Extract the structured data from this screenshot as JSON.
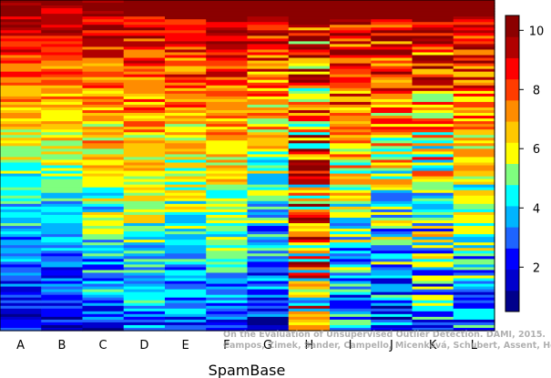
{
  "chart_data": {
    "type": "heatmap",
    "title": "",
    "xlabel": "SpamBase",
    "ylabel": "",
    "columns": [
      "A",
      "B",
      "C",
      "D",
      "E",
      "F",
      "G",
      "H",
      "I",
      "J",
      "K",
      "L"
    ],
    "color_scale": {
      "min": 0.5,
      "max": 10.5,
      "ticks": [
        2,
        4,
        6,
        8,
        10
      ],
      "colors": [
        "#00008B",
        "#0000CD",
        "#0000FF",
        "#1E64FF",
        "#00B4FF",
        "#00FFFF",
        "#7FFF7F",
        "#FFFF00",
        "#FFC800",
        "#FF8C00",
        "#FF3C00",
        "#FF0000",
        "#B00000",
        "#8B0000"
      ]
    },
    "column_profiles": [
      {
        "column": "A",
        "top": 10,
        "bottom": 1.5,
        "noise": 1.2
      },
      {
        "column": "B",
        "top": 10,
        "bottom": 1.5,
        "noise": 1.2
      },
      {
        "column": "C",
        "top": 10,
        "bottom": 2.5,
        "noise": 1.6
      },
      {
        "column": "D",
        "top": 10,
        "bottom": 3.0,
        "noise": 1.5
      },
      {
        "column": "E",
        "top": 10,
        "bottom": 2.5,
        "noise": 1.5
      },
      {
        "column": "F",
        "top": 10,
        "bottom": 3.0,
        "noise": 1.3
      },
      {
        "column": "G",
        "top": 10,
        "bottom": 2.0,
        "noise": 1.8
      },
      {
        "column": "H",
        "top": 9,
        "bottom": 6.0,
        "noise": 3.5
      },
      {
        "column": "I",
        "top": 10,
        "bottom": 3.0,
        "noise": 2.0
      },
      {
        "column": "J",
        "top": 10,
        "bottom": 2.5,
        "noise": 2.2
      },
      {
        "column": "K",
        "top": 10,
        "bottom": 3.0,
        "noise": 2.5
      },
      {
        "column": "L",
        "top": 10,
        "bottom": 3.0,
        "noise": 1.8
      }
    ],
    "n_rows": 120,
    "legend_placement": "right",
    "grid": false
  },
  "watermark": {
    "line1": "On the Evaluation of Unsupervised Outlier Detection. DAMI, 2015.",
    "line2": "Campos, Zimek, Sander, Campello, Micenková, Schubert, Assent, Houle"
  }
}
